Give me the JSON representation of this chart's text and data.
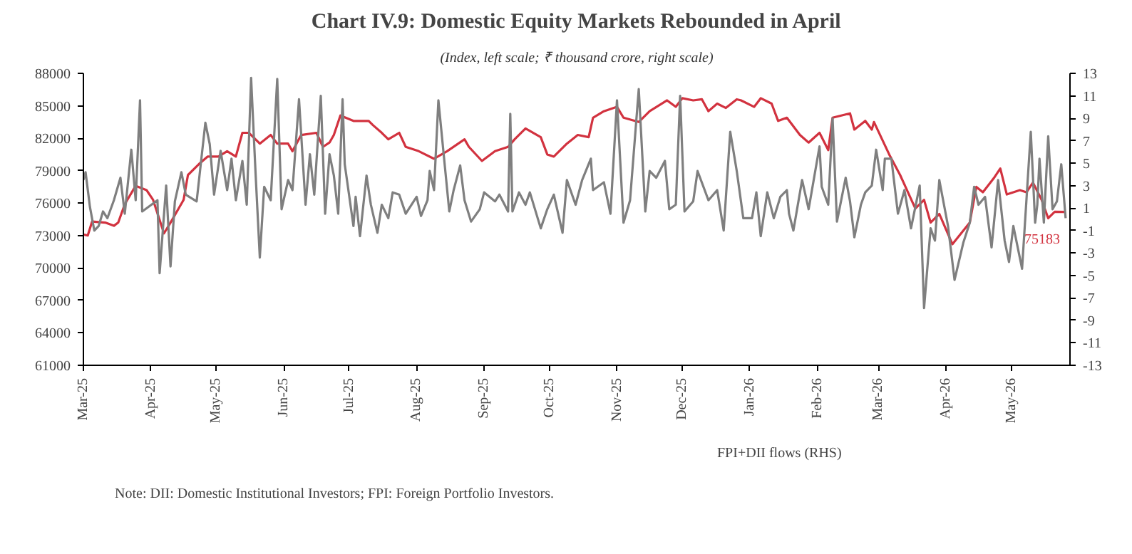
{
  "chart_data": {
    "type": "line",
    "title": "Chart IV.9: Domestic Equity Markets Rebounded in April",
    "subtitle": "(Index, left scale; ₹ thousand crore, right scale)",
    "xlim": [
      "2025-03-01",
      "2026-05-28"
    ],
    "xticks": [
      {
        "value": "2025-03-01",
        "label": "Mar-25"
      },
      {
        "value": "2025-04-01",
        "label": "Apr-25"
      },
      {
        "value": "2025-05-01",
        "label": "May-25"
      },
      {
        "value": "2025-06-01",
        "label": "Jun-25"
      },
      {
        "value": "2025-07-01",
        "label": "Jul-25"
      },
      {
        "value": "2025-08-01",
        "label": "Aug-25"
      },
      {
        "value": "2025-09-01",
        "label": "Sep-25"
      },
      {
        "value": "2025-10-01",
        "label": "Oct-25"
      },
      {
        "value": "2025-11-01",
        "label": "Nov-25"
      },
      {
        "value": "2025-12-01",
        "label": "Dec-25"
      },
      {
        "value": "2026-01-01",
        "label": "Jan-26"
      },
      {
        "value": "2026-02-01",
        "label": "Feb-26"
      },
      {
        "value": "2026-03-01",
        "label": "Mar-26"
      },
      {
        "value": "2026-04-01",
        "label": "Apr-26"
      },
      {
        "value": "2026-05-01",
        "label": "May-26"
      }
    ],
    "ylim": [
      61000,
      88000
    ],
    "yticks": [
      61000,
      64000,
      67000,
      70000,
      73000,
      76000,
      79000,
      82000,
      85000,
      88000
    ],
    "y2lim": [
      -13,
      13
    ],
    "y2ticks": [
      -13,
      -11,
      -9,
      -7,
      -5,
      -3,
      -1,
      1,
      3,
      5,
      7,
      9,
      11,
      13
    ],
    "legend": "bottom",
    "series": [
      {
        "color": "#d2323f",
        "x": [
          "2025-03-01",
          "2025-03-03",
          "2025-03-05",
          "2025-03-11",
          "2025-03-15",
          "2025-03-17",
          "2025-03-20",
          "2025-03-25",
          "2025-03-30",
          "2025-04-02",
          "2025-04-07",
          "2025-04-10",
          "2025-04-16",
          "2025-04-18",
          "2025-04-23",
          "2025-04-27",
          "2025-05-02",
          "2025-05-06",
          "2025-05-10",
          "2025-05-13",
          "2025-05-16",
          "2025-05-21",
          "2025-05-26",
          "2025-05-29",
          "2025-06-03",
          "2025-06-05",
          "2025-06-09",
          "2025-06-16",
          "2025-06-19",
          "2025-06-22",
          "2025-06-24",
          "2025-06-27",
          "2025-07-03",
          "2025-07-10",
          "2025-07-12",
          "2025-07-16",
          "2025-07-19",
          "2025-07-24",
          "2025-07-27",
          "2025-08-02",
          "2025-08-09",
          "2025-08-15",
          "2025-08-23",
          "2025-08-25",
          "2025-08-31",
          "2025-09-06",
          "2025-09-12",
          "2025-09-15",
          "2025-09-20",
          "2025-09-27",
          "2025-09-30",
          "2025-10-03",
          "2025-10-09",
          "2025-10-14",
          "2025-10-19",
          "2025-10-21",
          "2025-10-26",
          "2025-11-01",
          "2025-11-04",
          "2025-11-11",
          "2025-11-16",
          "2025-11-24",
          "2025-11-28",
          "2025-12-01",
          "2025-12-06",
          "2025-12-10",
          "2025-12-13",
          "2025-12-17",
          "2025-12-21",
          "2025-12-26",
          "2025-12-28",
          "2026-01-03",
          "2026-01-06",
          "2026-01-11",
          "2026-01-14",
          "2026-01-18",
          "2026-01-24",
          "2026-01-28",
          "2026-02-02",
          "2026-02-06",
          "2026-02-08",
          "2026-02-16",
          "2026-02-18",
          "2026-02-23",
          "2026-02-26",
          "2026-02-27",
          "2026-03-06",
          "2026-03-11",
          "2026-03-18",
          "2026-03-22",
          "2026-03-25",
          "2026-03-29",
          "2026-04-04",
          "2026-04-08",
          "2026-04-12",
          "2026-04-15",
          "2026-04-18",
          "2026-04-23",
          "2026-04-26",
          "2026-04-29",
          "2026-05-05",
          "2026-05-08",
          "2026-05-11",
          "2026-05-15",
          "2026-05-18",
          "2026-05-21",
          "2026-05-26"
        ],
        "values": [
          73100,
          73000,
          74300,
          74200,
          73900,
          74200,
          75900,
          77600,
          77200,
          76300,
          73200,
          74200,
          76300,
          78600,
          79600,
          80300,
          80300,
          80800,
          80300,
          82500,
          82500,
          81500,
          82300,
          81500,
          81500,
          80800,
          82300,
          82500,
          81200,
          81600,
          82300,
          84100,
          83600,
          83600,
          83200,
          82500,
          81900,
          82500,
          81200,
          80800,
          80100,
          80800,
          81900,
          81200,
          79900,
          80800,
          81200,
          81900,
          82900,
          82100,
          80500,
          80300,
          81500,
          82300,
          82100,
          83900,
          84500,
          84900,
          83900,
          83500,
          84500,
          85500,
          84900,
          85700,
          85500,
          85600,
          84500,
          85200,
          84800,
          85600,
          85500,
          84900,
          85700,
          85200,
          83600,
          83900,
          82300,
          81600,
          82500,
          80900,
          83900,
          84300,
          82800,
          83600,
          82800,
          83500,
          80500,
          78600,
          75500,
          76300,
          74200,
          75000,
          72200,
          73200,
          74200,
          77500,
          77000,
          78300,
          79200,
          76800,
          77200,
          77000,
          77900,
          76300,
          74600,
          75200,
          75183
        ]
      },
      {
        "name": "FPI+DII flows (RHS)",
        "color": "#7f7f7f",
        "axis": "y2",
        "x": [
          "2025-03-01",
          "2025-03-02",
          "2025-03-04",
          "2025-03-06",
          "2025-03-08",
          "2025-03-10",
          "2025-03-12",
          "2025-03-15",
          "2025-03-18",
          "2025-03-20",
          "2025-03-23",
          "2025-03-25",
          "2025-03-27",
          "2025-03-28",
          "2025-04-04",
          "2025-04-05",
          "2025-04-08",
          "2025-04-10",
          "2025-04-12",
          "2025-04-15",
          "2025-04-17",
          "2025-04-22",
          "2025-04-26",
          "2025-04-28",
          "2025-04-30",
          "2025-05-03",
          "2025-05-06",
          "2025-05-08",
          "2025-05-10",
          "2025-05-13",
          "2025-05-15",
          "2025-05-17",
          "2025-05-19",
          "2025-05-21",
          "2025-05-23",
          "2025-05-26",
          "2025-05-29",
          "2025-05-31",
          "2025-06-03",
          "2025-06-05",
          "2025-06-08",
          "2025-06-11",
          "2025-06-13",
          "2025-06-15",
          "2025-06-18",
          "2025-06-20",
          "2025-06-22",
          "2025-06-24",
          "2025-06-26",
          "2025-06-28",
          "2025-06-29",
          "2025-07-03",
          "2025-07-04",
          "2025-07-06",
          "2025-07-09",
          "2025-07-11",
          "2025-07-14",
          "2025-07-16",
          "2025-07-19",
          "2025-07-21",
          "2025-07-24",
          "2025-07-27",
          "2025-08-01",
          "2025-08-03",
          "2025-08-06",
          "2025-08-07",
          "2025-08-09",
          "2025-08-11",
          "2025-08-16",
          "2025-08-18",
          "2025-08-21",
          "2025-08-23",
          "2025-08-26",
          "2025-08-30",
          "2025-09-01",
          "2025-09-06",
          "2025-09-08",
          "2025-09-12",
          "2025-09-13",
          "2025-09-14",
          "2025-09-17",
          "2025-09-20",
          "2025-09-22",
          "2025-09-27",
          "2025-09-30",
          "2025-10-03",
          "2025-10-07",
          "2025-10-09",
          "2025-10-13",
          "2025-10-16",
          "2025-10-20",
          "2025-10-21",
          "2025-10-26",
          "2025-10-29",
          "2025-11-01",
          "2025-11-04",
          "2025-11-07",
          "2025-11-11",
          "2025-11-14",
          "2025-11-16",
          "2025-11-19",
          "2025-11-23",
          "2025-11-25",
          "2025-11-28",
          "2025-11-30",
          "2025-12-02",
          "2025-12-06",
          "2025-12-08",
          "2025-12-13",
          "2025-12-17",
          "2025-12-20",
          "2025-12-23",
          "2025-12-26",
          "2025-12-29",
          "2026-01-02",
          "2026-01-04",
          "2026-01-06",
          "2026-01-09",
          "2026-01-12",
          "2026-01-15",
          "2026-01-18",
          "2026-01-19",
          "2026-01-21",
          "2026-01-25",
          "2026-01-28",
          "2026-02-02",
          "2026-02-03",
          "2026-02-06",
          "2026-02-08",
          "2026-02-10",
          "2026-02-14",
          "2026-02-16",
          "2026-02-18",
          "2026-02-21",
          "2026-02-23",
          "2026-02-26",
          "2026-02-28",
          "2026-03-03",
          "2026-03-04",
          "2026-03-07",
          "2026-03-10",
          "2026-03-13",
          "2026-03-16",
          "2026-03-20",
          "2026-03-22",
          "2026-03-25",
          "2026-03-27",
          "2026-03-29",
          "2026-04-02",
          "2026-04-05",
          "2026-04-09",
          "2026-04-12",
          "2026-04-14",
          "2026-04-16",
          "2026-04-19",
          "2026-04-22",
          "2026-04-25",
          "2026-04-28",
          "2026-04-30",
          "2026-05-02",
          "2026-05-06",
          "2026-05-10",
          "2026-05-12",
          "2026-05-13",
          "2026-05-14",
          "2026-05-16",
          "2026-05-18",
          "2026-05-20",
          "2026-05-22",
          "2026-05-24",
          "2026-05-26"
        ],
        "values": [
          3.5,
          4.2,
          1.1,
          -1.0,
          -0.6,
          0.7,
          0.1,
          1.7,
          3.7,
          0.5,
          6.2,
          1.7,
          10.6,
          0.7,
          1.7,
          -4.8,
          3.0,
          -4.2,
          1.6,
          4.2,
          2.2,
          1.6,
          8.6,
          6.7,
          2.2,
          6.1,
          2.6,
          5.4,
          1.7,
          5.2,
          1.3,
          12.6,
          4.3,
          -3.4,
          2.9,
          1.7,
          12.5,
          0.9,
          3.5,
          2.6,
          10.7,
          1.3,
          5.8,
          2.2,
          11.0,
          0.5,
          5.8,
          3.9,
          0.5,
          10.7,
          4.9,
          -0.6,
          2.0,
          -1.5,
          3.9,
          1.3,
          -1.2,
          1.3,
          0.1,
          2.4,
          2.2,
          0.5,
          2.0,
          0.3,
          1.7,
          4.3,
          2.6,
          10.6,
          0.7,
          2.6,
          4.8,
          1.7,
          -0.2,
          0.9,
          2.4,
          1.6,
          2.2,
          0.7,
          9.4,
          0.7,
          2.4,
          1.3,
          2.4,
          -0.8,
          0.9,
          2.2,
          -1.2,
          3.5,
          1.3,
          3.5,
          5.4,
          2.6,
          3.3,
          0.5,
          10.6,
          -0.3,
          1.7,
          11.6,
          0.7,
          4.3,
          3.7,
          5.2,
          0.9,
          1.3,
          11.0,
          0.7,
          1.6,
          4.3,
          1.7,
          2.6,
          -1.0,
          7.8,
          4.3,
          0.1,
          0.1,
          2.4,
          -1.5,
          2.4,
          0.1,
          2.0,
          2.6,
          0.5,
          -1.0,
          3.5,
          0.9,
          6.5,
          2.9,
          1.3,
          9.0,
          -0.2,
          3.7,
          1.6,
          -1.6,
          1.3,
          2.4,
          3.0,
          6.2,
          2.6,
          5.4,
          5.4,
          0.5,
          2.6,
          -0.8,
          3.0,
          -7.9,
          -0.8,
          -1.9,
          3.5,
          -0.6,
          -5.4,
          -2.1,
          -0.3,
          2.9,
          1.3,
          2.0,
          -2.5,
          3.5,
          -1.9,
          -3.8,
          -0.6,
          -4.4,
          7.8,
          -0.3,
          1.3,
          5.4,
          -0.3,
          7.4,
          0.9,
          1.6,
          4.9,
          0.1
        ]
      }
    ],
    "annotations": [
      {
        "text": "75183",
        "x": "2026-05-26",
        "y": 75183
      },
      "Note: DII: Domestic Institutional Investors; FPI: Foreign Portfolio Investors."
    ]
  }
}
